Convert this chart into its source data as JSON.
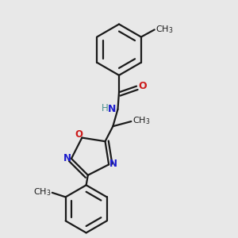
{
  "bg_color": "#e8e8e8",
  "bond_color": "#1a1a1a",
  "bond_width": 1.6,
  "atom_colors": {
    "N": "#1a1acc",
    "O": "#cc1a1a",
    "H": "#4a9090",
    "C": "#1a1a1a"
  },
  "font_size": 8.5,
  "fig_size": [
    3.0,
    3.0
  ],
  "dpi": 100
}
